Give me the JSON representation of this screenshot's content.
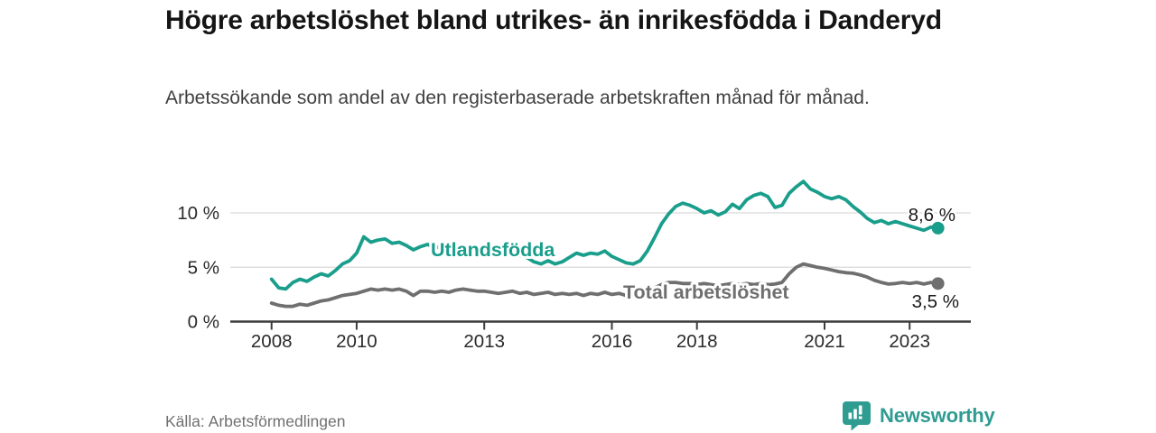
{
  "chart_data": {
    "type": "line",
    "title": "Högre arbetslöshet bland utrikes- än inrikesfödda i Danderyd",
    "subtitle": "Arbetssökande som andel av den registerbaserade arbetskraften månad för månad.",
    "source": "Källa: Arbetsförmedlingen",
    "x_start": 2008.0,
    "x_step": 0.166667,
    "x_unit": "year (samples every 2 months)",
    "y_unit": "percent",
    "ylim": [
      0,
      13.5
    ],
    "xlim": [
      2007.0,
      2024.4
    ],
    "grid": "horizontal gridlines at 5 % and 10 %, baseline axis at 0 %",
    "legend_position": "inline labels on lines, value labels at line ends",
    "y_ticks": [
      {
        "value": 0,
        "label": "0 %"
      },
      {
        "value": 5,
        "label": "5 %"
      },
      {
        "value": 10,
        "label": "10 %"
      }
    ],
    "x_ticks": [
      {
        "value": 2008,
        "label": "2008"
      },
      {
        "value": 2010,
        "label": "2010"
      },
      {
        "value": 2013,
        "label": "2013"
      },
      {
        "value": 2016,
        "label": "2016"
      },
      {
        "value": 2018,
        "label": "2018"
      },
      {
        "value": 2021,
        "label": "2021"
      },
      {
        "value": 2023,
        "label": "2023"
      }
    ],
    "series": [
      {
        "name": "Utlandsfödda",
        "line_label": "Utlandsfödda",
        "end_label": "8,6 %",
        "end_value": 8.6,
        "color": "#1a9e8c",
        "values": [
          3.9,
          3.1,
          3.0,
          3.6,
          3.9,
          3.7,
          4.1,
          4.4,
          4.2,
          4.7,
          5.3,
          5.6,
          6.3,
          7.8,
          7.3,
          7.5,
          7.6,
          7.2,
          7.3,
          7.0,
          6.6,
          6.9,
          7.1,
          6.8,
          6.9,
          6.6,
          6.8,
          6.5,
          6.7,
          6.6,
          6.5,
          6.3,
          6.4,
          6.2,
          6.0,
          6.1,
          5.9,
          5.5,
          5.3,
          5.6,
          5.3,
          5.5,
          5.9,
          6.3,
          6.1,
          6.3,
          6.2,
          6.5,
          6.0,
          5.7,
          5.4,
          5.3,
          5.6,
          6.5,
          7.7,
          9.0,
          9.9,
          10.6,
          10.9,
          10.7,
          10.4,
          10.0,
          10.2,
          9.8,
          10.1,
          10.8,
          10.4,
          11.2,
          11.6,
          11.8,
          11.5,
          10.5,
          10.7,
          11.8,
          12.4,
          12.9,
          12.2,
          11.9,
          11.5,
          11.3,
          11.5,
          11.2,
          10.6,
          10.1,
          9.5,
          9.1,
          9.3,
          9.0,
          9.2,
          9.0,
          8.8,
          8.6,
          8.4,
          8.7,
          8.6
        ]
      },
      {
        "name": "Total arbetslöshet",
        "line_label": "Total arbetslöshet",
        "end_label": "3,5 %",
        "end_value": 3.5,
        "color": "#6f6f6f",
        "values": [
          1.7,
          1.5,
          1.4,
          1.4,
          1.6,
          1.5,
          1.7,
          1.9,
          2.0,
          2.2,
          2.4,
          2.5,
          2.6,
          2.8,
          3.0,
          2.9,
          3.0,
          2.9,
          3.0,
          2.8,
          2.4,
          2.8,
          2.8,
          2.7,
          2.8,
          2.7,
          2.9,
          3.0,
          2.9,
          2.8,
          2.8,
          2.7,
          2.6,
          2.7,
          2.8,
          2.6,
          2.7,
          2.5,
          2.6,
          2.7,
          2.5,
          2.6,
          2.5,
          2.6,
          2.4,
          2.6,
          2.5,
          2.7,
          2.5,
          2.6,
          2.4,
          2.3,
          2.5,
          2.8,
          3.1,
          3.4,
          3.6,
          3.6,
          3.5,
          3.5,
          3.4,
          3.5,
          3.4,
          3.3,
          3.4,
          3.5,
          3.4,
          3.5,
          3.4,
          3.5,
          3.4,
          3.45,
          3.6,
          4.4,
          5.0,
          5.3,
          5.15,
          5.0,
          4.9,
          4.75,
          4.6,
          4.5,
          4.45,
          4.3,
          4.1,
          3.8,
          3.6,
          3.45,
          3.5,
          3.6,
          3.5,
          3.6,
          3.45,
          3.6,
          3.5
        ]
      }
    ],
    "colors": {
      "grid": "#d9d9d9",
      "axis": "#3c3c3c",
      "tick_label": "#2b2b2b",
      "end_label": "#1a1a1a"
    }
  },
  "footer": {
    "source": "Källa: Arbetsförmedlingen",
    "brand": "Newsworthy",
    "brand_color": "#2f9c92"
  }
}
